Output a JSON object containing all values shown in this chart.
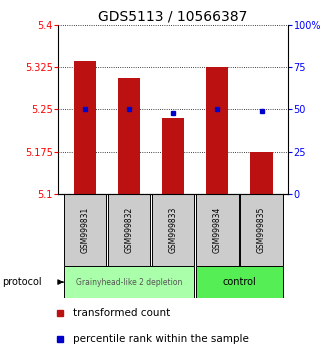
{
  "title": "GDS5113 / 10566387",
  "samples": [
    "GSM999831",
    "GSM999832",
    "GSM999833",
    "GSM999834",
    "GSM999835"
  ],
  "transformed_counts": [
    5.335,
    5.305,
    5.235,
    5.325,
    5.175
  ],
  "percentile_ranks": [
    50,
    50,
    48,
    50,
    49
  ],
  "ylim_left": [
    5.1,
    5.4
  ],
  "ylim_right": [
    0,
    100
  ],
  "yticks_left": [
    5.1,
    5.175,
    5.25,
    5.325,
    5.4
  ],
  "yticks_right": [
    0,
    25,
    50,
    75,
    100
  ],
  "ytick_labels_left": [
    "5.1",
    "5.175",
    "5.25",
    "5.325",
    "5.4"
  ],
  "ytick_labels_right": [
    "0",
    "25",
    "50",
    "75",
    "100%"
  ],
  "bar_color": "#bb1111",
  "marker_color": "#0000cc",
  "bar_bottom": 5.1,
  "group1_label": "Grainyhead-like 2 depletion",
  "group2_label": "control",
  "group1_color": "#aaffaa",
  "group2_color": "#55ee55",
  "group1_indices": [
    0,
    1,
    2
  ],
  "group2_indices": [
    3,
    4
  ],
  "protocol_label": "protocol",
  "legend_bar_label": "transformed count",
  "legend_marker_label": "percentile rank within the sample",
  "bg_color": "#ffffff",
  "sample_bg_color": "#cccccc",
  "title_fontsize": 10,
  "tick_fontsize": 7,
  "legend_fontsize": 7.5
}
